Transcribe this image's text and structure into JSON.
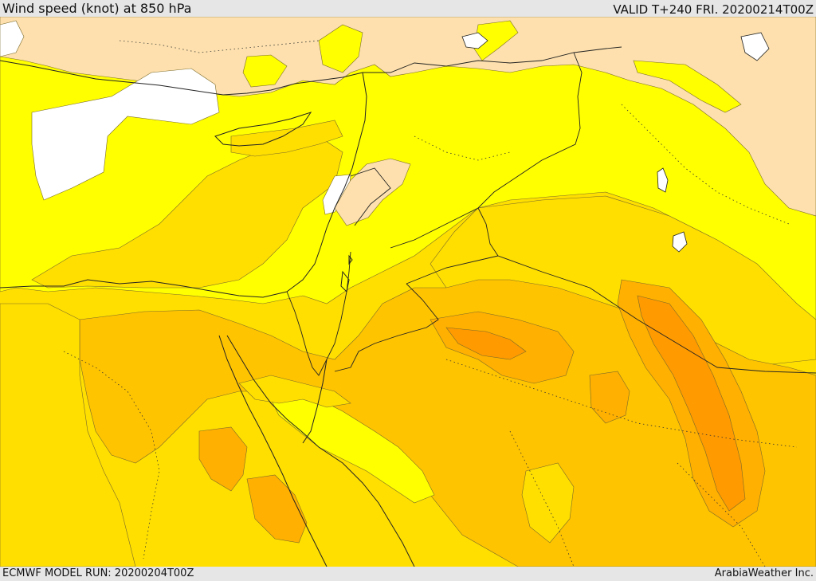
{
  "header": {
    "title": "Wind speed (knot) at 850 hPa",
    "valid": "VALID T+240 FRI. 20200214T00Z"
  },
  "footer": {
    "model_run": "ECMWF MODEL RUN: 20200204T00Z",
    "credit": "ArabiaWeather Inc."
  },
  "palette": {
    "calm": "#ffffff",
    "pale": "#fde0ad",
    "yellow": "#ffff00",
    "gold": "#ffdf00",
    "orange_light": "#ffc400",
    "orange": "#ffb000",
    "orange_dark": "#ff9a00",
    "line": "#222222"
  }
}
